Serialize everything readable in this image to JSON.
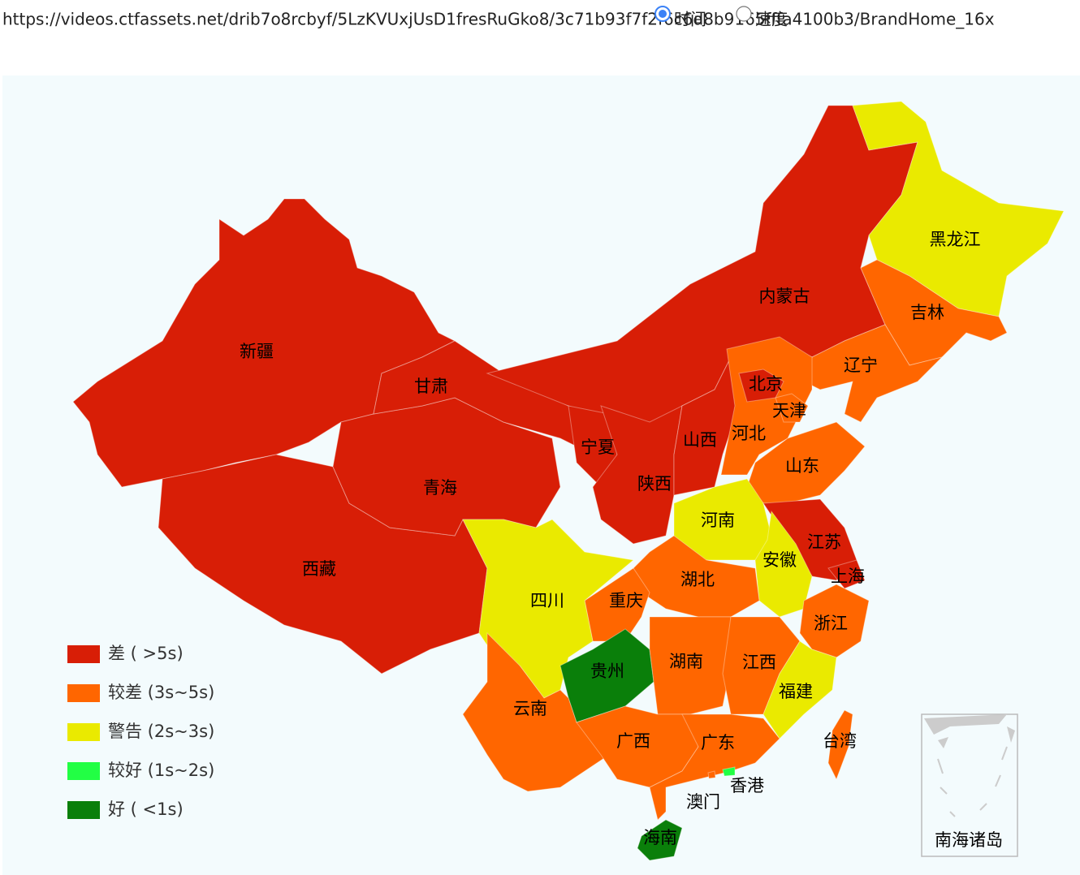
{
  "url": "https://videos.ctfassets.net/drib7o8rcbyf/5LzKVUxjUsD1fresRuGko8/3c71b93f7f2f6c6d8b9165fffa4100b3/BrandHome_16x",
  "options": [
    {
      "label": "时间",
      "checked": true
    },
    {
      "label": "速度",
      "checked": false
    }
  ],
  "chart_data": {
    "type": "map",
    "legend": [
      {
        "label": "差 ( >5s)",
        "color": "#d81e06"
      },
      {
        "label": "较差 (3s~5s)",
        "color": "#ff6600"
      },
      {
        "label": "警告 (2s~3s)",
        "color": "#eaea00"
      },
      {
        "label": "较好 (1s~2s)",
        "color": "#22ff44"
      },
      {
        "label": "好 ( <1s)",
        "color": "#0a7f0a"
      }
    ],
    "regions": [
      {
        "name": "新疆",
        "level": 0
      },
      {
        "name": "西藏",
        "level": 0
      },
      {
        "name": "青海",
        "level": 0
      },
      {
        "name": "甘肃",
        "level": 0
      },
      {
        "name": "内蒙古",
        "level": 0
      },
      {
        "name": "黑龙江",
        "level": 2
      },
      {
        "name": "吉林",
        "level": 1
      },
      {
        "name": "辽宁",
        "level": 1
      },
      {
        "name": "宁夏",
        "level": 0
      },
      {
        "name": "陕西",
        "level": 0
      },
      {
        "name": "山西",
        "level": 0
      },
      {
        "name": "河北",
        "level": 1
      },
      {
        "name": "北京",
        "level": 0
      },
      {
        "name": "天津",
        "level": 1
      },
      {
        "name": "山东",
        "level": 1
      },
      {
        "name": "河南",
        "level": 2
      },
      {
        "name": "江苏",
        "level": 0
      },
      {
        "name": "上海",
        "level": 0
      },
      {
        "name": "安徽",
        "level": 2
      },
      {
        "name": "湖北",
        "level": 1
      },
      {
        "name": "重庆",
        "level": 1
      },
      {
        "name": "四川",
        "level": 2
      },
      {
        "name": "贵州",
        "level": 4
      },
      {
        "name": "云南",
        "level": 1
      },
      {
        "name": "湖南",
        "level": 1
      },
      {
        "name": "江西",
        "level": 1
      },
      {
        "name": "浙江",
        "level": 1
      },
      {
        "name": "福建",
        "level": 2
      },
      {
        "name": "广西",
        "level": 1
      },
      {
        "name": "广东",
        "level": 1
      },
      {
        "name": "海南",
        "level": 4
      },
      {
        "name": "台湾",
        "level": 1
      },
      {
        "name": "香港",
        "level": 3
      },
      {
        "name": "澳门",
        "level": 1
      }
    ],
    "inset_label": "南海诸岛"
  }
}
